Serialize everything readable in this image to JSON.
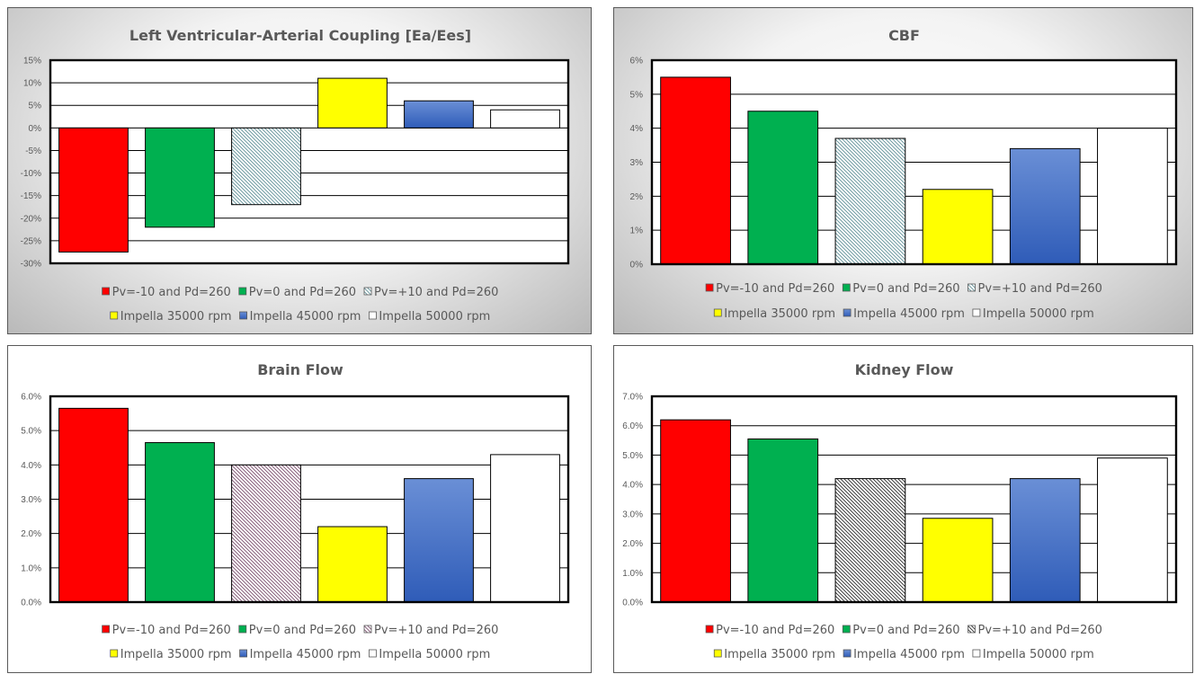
{
  "colors": {
    "red": "#ff0000",
    "green": "#00b050",
    "yellow": "#ffff00",
    "blue": "#4472c4",
    "white": "#ffffff"
  },
  "legend": {
    "row1": [
      "Pv=-10 and Pd=260",
      "Pv=0 and Pd=260",
      "Pv=+10 and Pd=260"
    ],
    "row2": [
      "Impella 35000 rpm",
      "Impella 45000 rpm",
      "Impella 50000 rpm"
    ]
  },
  "chart_data": [
    {
      "type": "bar",
      "title": "Left Ventricular-Arterial  Coupling [Ea/Ees]",
      "categories": [
        "Pv=-10 and Pd=260",
        "Pv=0 and Pd=260",
        "Pv=+10 and Pd=260",
        "Impella 35000 rpm",
        "Impella 45000 rpm",
        "Impella 50000 rpm"
      ],
      "values": [
        -27.5,
        -22,
        -17,
        11,
        6,
        4
      ],
      "ylim": [
        -30,
        15
      ],
      "yticks": [
        15,
        10,
        5,
        0,
        -5,
        -10,
        -15,
        -20,
        -25,
        -30
      ],
      "tick_labels": [
        "15%",
        "10%",
        "5%",
        "0%",
        "-5%",
        "-10%",
        "-15%",
        "-20%",
        "-25%",
        "-30%"
      ],
      "grid": true,
      "legend_position": "bottom"
    },
    {
      "type": "bar",
      "title": "CBF",
      "categories": [
        "Pv=-10 and Pd=260",
        "Pv=0 and Pd=260",
        "Pv=+10 and Pd=260",
        "Impella 35000 rpm",
        "Impella 45000 rpm",
        "Impella 50000 rpm"
      ],
      "values": [
        5.5,
        4.5,
        3.7,
        2.2,
        3.4,
        4.0
      ],
      "ylim": [
        0,
        6
      ],
      "yticks": [
        6,
        5,
        4,
        3,
        2,
        1,
        0
      ],
      "tick_labels": [
        "6%",
        "5%",
        "4%",
        "3%",
        "2%",
        "1%",
        "0%"
      ],
      "grid": true,
      "legend_position": "bottom"
    },
    {
      "type": "bar",
      "title": "Brain Flow",
      "categories": [
        "Pv=-10 and Pd=260",
        "Pv=0 and Pd=260",
        "Pv=+10 and Pd=260",
        "Impella 35000 rpm",
        "Impella 45000 rpm",
        "Impella 50000 rpm"
      ],
      "values": [
        5.65,
        4.65,
        4.0,
        2.2,
        3.6,
        4.3
      ],
      "ylim": [
        0,
        6
      ],
      "yticks": [
        6,
        5,
        4,
        3,
        2,
        1,
        0
      ],
      "tick_labels": [
        "6.0%",
        "5.0%",
        "4.0%",
        "3.0%",
        "2.0%",
        "1.0%",
        "0.0%"
      ],
      "grid": true,
      "legend_position": "bottom"
    },
    {
      "type": "bar",
      "title": "Kidney Flow",
      "categories": [
        "Pv=-10 and Pd=260",
        "Pv=0 and Pd=260",
        "Pv=+10 and Pd=260",
        "Impella 35000 rpm",
        "Impella 45000 rpm",
        "Impella 50000 rpm"
      ],
      "values": [
        6.2,
        5.55,
        4.2,
        2.85,
        4.2,
        4.9
      ],
      "ylim": [
        0,
        7
      ],
      "yticks": [
        7,
        6,
        5,
        4,
        3,
        2,
        1,
        0
      ],
      "tick_labels": [
        "7.0%",
        "6.0%",
        "5.0%",
        "4.0%",
        "3.0%",
        "2.0%",
        "1.0%",
        "0.0%"
      ],
      "grid": true,
      "legend_position": "bottom"
    }
  ]
}
